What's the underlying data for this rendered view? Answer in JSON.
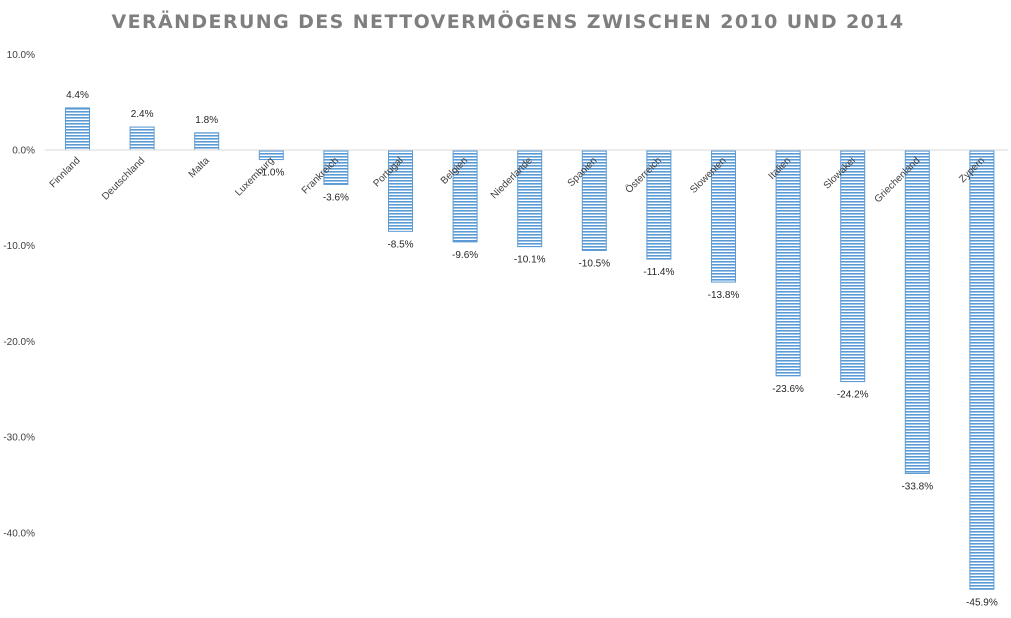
{
  "chart_data": {
    "type": "bar",
    "title": "VERÄNDERUNG DES NETTOVERMÖGENS ZWISCHEN 2010 UND 2014",
    "xlabel": "",
    "ylabel": "",
    "categories": [
      "Finnland",
      "Deutschland",
      "Malta",
      "Luxemburg",
      "Frankreich",
      "Portugal",
      "Belgien",
      "Niederlande",
      "Spanien",
      "Österreich",
      "Slowenien",
      "Italien",
      "Slowakei",
      "Griechenland",
      "Zypern"
    ],
    "values": [
      4.4,
      2.4,
      1.8,
      -1.0,
      -3.6,
      -8.5,
      -9.6,
      -10.1,
      -10.5,
      -11.4,
      -13.8,
      -23.6,
      -24.2,
      -33.8,
      -45.9
    ],
    "data_labels": [
      "4.4%",
      "2.4%",
      "1.8%",
      "-1.0%",
      "-3.6%",
      "-8.5%",
      "-9.6%",
      "-10.1%",
      "-10.5%",
      "-11.4%",
      "-13.8%",
      "-23.6%",
      "-24.2%",
      "-33.8%",
      "-45.9%"
    ],
    "ylim": [
      -48,
      10
    ],
    "y_ticks": [
      10,
      0,
      -10,
      -20,
      -30,
      -40
    ],
    "y_tick_labels": [
      "10.0%",
      "0.0%",
      "-10.0%",
      "-20.0%",
      "-30.0%",
      "-40.0%"
    ],
    "grid": false,
    "legend": "none",
    "bar_color": "#5b9bd5",
    "bar_pattern": "horizontal-stripes"
  }
}
